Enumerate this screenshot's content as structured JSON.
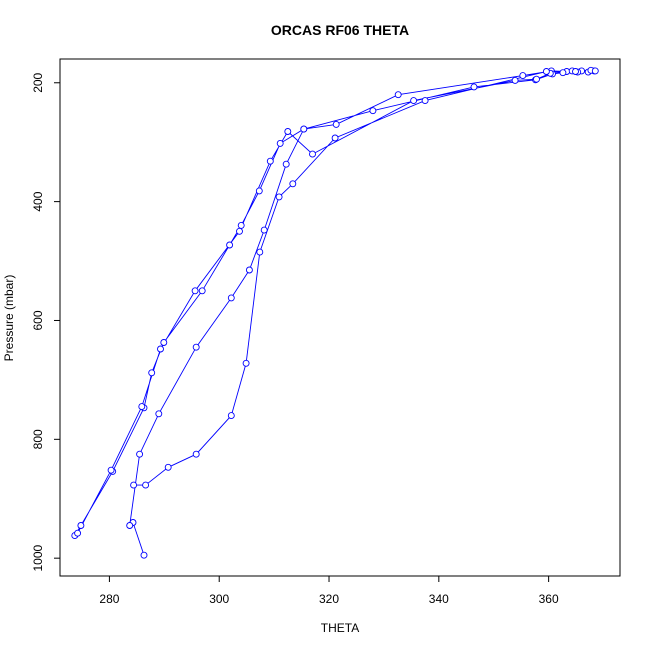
{
  "chart_data": {
    "type": "scatter",
    "title": "ORCAS RF06 THETA",
    "xlabel": "THETA",
    "ylabel": "Pressure (mbar)",
    "xlim": [
      271,
      373
    ],
    "ylim": [
      1030,
      160
    ],
    "y_reversed": true,
    "xticks": [
      280,
      300,
      320,
      340,
      360
    ],
    "yticks": [
      200,
      400,
      600,
      800,
      1000
    ],
    "grid": false,
    "series_color": "#0000ff",
    "style": "line with open circle markers",
    "x": [
      286.3,
      284.3,
      283.7,
      285.5,
      289.0,
      295.8,
      302.2,
      305.5,
      308.2,
      312.2,
      315.4,
      321.3,
      332.6,
      355.3,
      360.5,
      363.3,
      366.0,
      368.3,
      367.2,
      365.3,
      362.6,
      360.7,
      357.6,
      346.4,
      328.0,
      315.4,
      311.1,
      307.3,
      304.0,
      301.9,
      296.9,
      289.9,
      287.7,
      286.3,
      280.6,
      274.8,
      273.7,
      274.2,
      280.3,
      285.9,
      289.3,
      295.6,
      303.7,
      309.3,
      312.5,
      317.0,
      335.4,
      353.9,
      357.8,
      360.3,
      364.3,
      367.7,
      368.5,
      364.9,
      359.6,
      337.5,
      321.1,
      313.4,
      310.9,
      307.4,
      304.9,
      302.2,
      295.8,
      290.7,
      286.6,
      284.4
    ],
    "y": [
      995,
      940,
      945,
      825,
      757,
      645,
      562,
      515,
      448,
      337,
      278,
      270,
      220,
      188,
      180,
      181,
      180,
      180,
      182,
      182,
      183,
      185,
      195,
      207,
      247,
      278,
      302,
      382,
      440,
      473,
      550,
      637,
      688,
      747,
      854,
      945,
      962,
      958,
      852,
      745,
      648,
      550,
      450,
      332,
      282,
      320,
      230,
      196,
      194,
      184,
      180,
      179,
      180,
      181,
      181,
      230,
      293,
      370,
      392,
      485,
      672,
      760,
      825,
      847,
      877,
      877
    ]
  }
}
